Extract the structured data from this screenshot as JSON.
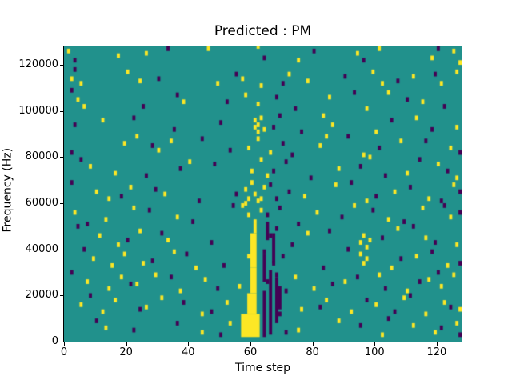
{
  "chart_data": {
    "type": "heatmap",
    "title": "Predicted : PM",
    "xlabel": "Time step",
    "ylabel": "Frequency (Hz)",
    "x_range": [
      0,
      128
    ],
    "y_range": [
      0,
      128000
    ],
    "grid": {
      "nx": 128,
      "ny": 128
    },
    "x_ticks": [
      0,
      20,
      40,
      60,
      80,
      100,
      120
    ],
    "x_tick_labels": [
      "0",
      "20",
      "40",
      "60",
      "80",
      "100",
      "120"
    ],
    "y_ticks": [
      0,
      20000,
      40000,
      60000,
      80000,
      100000,
      120000
    ],
    "y_tick_labels": [
      "0",
      "20000",
      "40000",
      "60000",
      "80000",
      "100000",
      "120000"
    ],
    "colors": {
      "background": "#ffffff",
      "mid": "#21918c",
      "high": "#fde725",
      "low": "#440154",
      "spine": "#000000"
    },
    "legend": null,
    "cells": {
      "yellow_rects": [
        [
          57,
          2,
          6,
          10
        ],
        [
          59,
          12,
          3,
          9
        ],
        [
          60,
          21,
          2,
          11
        ],
        [
          60,
          32,
          2,
          15
        ],
        [
          61,
          47,
          1,
          4
        ]
      ],
      "dark_rects": [
        [
          64,
          2,
          1,
          20
        ],
        [
          64,
          26,
          1,
          12
        ],
        [
          66,
          3,
          1,
          28
        ],
        [
          67,
          34,
          1,
          13
        ],
        [
          68,
          8,
          1,
          20
        ],
        [
          65,
          44,
          1,
          8
        ],
        [
          69,
          14,
          1,
          10
        ]
      ],
      "yellow": [
        [
          1,
          125
        ],
        [
          17,
          123
        ],
        [
          26,
          124
        ],
        [
          46,
          126
        ],
        [
          62,
          127
        ],
        [
          75,
          121
        ],
        [
          94,
          124
        ],
        [
          101,
          126
        ],
        [
          118,
          122
        ],
        [
          125,
          125
        ],
        [
          127,
          120
        ],
        [
          2,
          113
        ],
        [
          5,
          111
        ],
        [
          20,
          116
        ],
        [
          24,
          112
        ],
        [
          49,
          111
        ],
        [
          57,
          113
        ],
        [
          63,
          110
        ],
        [
          72,
          115
        ],
        [
          78,
          112
        ],
        [
          99,
          116
        ],
        [
          102,
          111
        ],
        [
          112,
          114
        ],
        [
          121,
          111
        ],
        [
          126,
          116
        ],
        [
          4,
          104
        ],
        [
          6,
          101
        ],
        [
          38,
          103
        ],
        [
          58,
          106
        ],
        [
          62,
          102
        ],
        [
          85,
          105
        ],
        [
          97,
          100
        ],
        [
          104,
          107
        ],
        [
          115,
          103
        ],
        [
          12,
          95
        ],
        [
          61,
          92
        ],
        [
          61,
          95
        ],
        [
          62,
          90
        ],
        [
          62,
          93
        ],
        [
          63,
          96
        ],
        [
          64,
          91
        ],
        [
          83,
          97
        ],
        [
          86,
          93
        ],
        [
          100,
          90
        ],
        [
          113,
          96
        ],
        [
          126,
          92
        ],
        [
          19,
          85
        ],
        [
          23,
          88
        ],
        [
          30,
          82
        ],
        [
          34,
          86
        ],
        [
          59,
          83
        ],
        [
          62,
          87
        ],
        [
          66,
          81
        ],
        [
          82,
          84
        ],
        [
          84,
          88
        ],
        [
          96,
          80
        ],
        [
          108,
          86
        ],
        [
          124,
          83
        ],
        [
          8,
          75
        ],
        [
          16,
          72
        ],
        [
          40,
          77
        ],
        [
          60,
          73
        ],
        [
          63,
          78
        ],
        [
          65,
          71
        ],
        [
          88,
          74
        ],
        [
          98,
          79
        ],
        [
          110,
          72
        ],
        [
          120,
          76
        ],
        [
          126,
          70
        ],
        [
          10,
          64
        ],
        [
          14,
          61
        ],
        [
          21,
          66
        ],
        [
          32,
          63
        ],
        [
          58,
          65
        ],
        [
          59,
          61
        ],
        [
          60,
          68
        ],
        [
          61,
          63
        ],
        [
          62,
          60
        ],
        [
          64,
          66
        ],
        [
          77,
          62
        ],
        [
          87,
          67
        ],
        [
          97,
          60
        ],
        [
          106,
          64
        ],
        [
          117,
          61
        ],
        [
          125,
          67
        ],
        [
          58,
          59
        ],
        [
          63,
          61
        ],
        [
          3,
          55
        ],
        [
          13,
          52
        ],
        [
          22,
          57
        ],
        [
          36,
          53
        ],
        [
          57,
          58
        ],
        [
          59,
          54
        ],
        [
          61,
          51
        ],
        [
          63,
          56
        ],
        [
          81,
          55
        ],
        [
          93,
          58
        ],
        [
          104,
          52
        ],
        [
          115,
          57
        ],
        [
          124,
          53
        ],
        [
          11,
          45
        ],
        [
          17,
          41
        ],
        [
          24,
          47
        ],
        [
          33,
          43
        ],
        [
          78,
          46
        ],
        [
          95,
          42
        ],
        [
          96,
          45
        ],
        [
          97,
          40
        ],
        [
          98,
          43
        ],
        [
          107,
          48
        ],
        [
          116,
          44
        ],
        [
          126,
          41
        ],
        [
          9,
          35
        ],
        [
          15,
          32
        ],
        [
          19,
          37
        ],
        [
          25,
          33
        ],
        [
          35,
          38
        ],
        [
          42,
          31
        ],
        [
          59,
          36
        ],
        [
          95,
          37
        ],
        [
          96,
          33
        ],
        [
          97,
          35
        ],
        [
          105,
          31
        ],
        [
          113,
          36
        ],
        [
          123,
          32
        ],
        [
          7,
          25
        ],
        [
          14,
          22
        ],
        [
          18,
          27
        ],
        [
          23,
          24
        ],
        [
          29,
          28
        ],
        [
          37,
          21
        ],
        [
          45,
          26
        ],
        [
          56,
          23
        ],
        [
          74,
          27
        ],
        [
          80,
          22
        ],
        [
          90,
          25
        ],
        [
          101,
          28
        ],
        [
          110,
          21
        ],
        [
          117,
          26
        ],
        [
          121,
          23
        ],
        [
          125,
          28
        ],
        [
          5,
          15
        ],
        [
          12,
          12
        ],
        [
          16,
          17
        ],
        [
          26,
          14
        ],
        [
          31,
          18
        ],
        [
          44,
          11
        ],
        [
          52,
          16
        ],
        [
          76,
          13
        ],
        [
          84,
          17
        ],
        [
          92,
          12
        ],
        [
          100,
          15
        ],
        [
          109,
          18
        ],
        [
          116,
          11
        ],
        [
          122,
          16
        ],
        [
          127,
          13
        ],
        [
          13,
          5
        ],
        [
          44,
          3
        ],
        [
          53,
          7
        ],
        [
          75,
          4
        ],
        [
          88,
          8
        ],
        [
          102,
          2
        ],
        [
          112,
          6
        ],
        [
          119,
          3
        ],
        [
          126,
          7
        ]
      ],
      "dark": [
        [
          3,
          121
        ],
        [
          33,
          126
        ],
        [
          64,
          122
        ],
        [
          80,
          125
        ],
        [
          96,
          121
        ],
        [
          120,
          126
        ],
        [
          3,
          117
        ],
        [
          30,
          113
        ],
        [
          55,
          115
        ],
        [
          70,
          111
        ],
        [
          90,
          114
        ],
        [
          107,
          112
        ],
        [
          119,
          115
        ],
        [
          2,
          108
        ],
        [
          25,
          101
        ],
        [
          36,
          106
        ],
        [
          52,
          103
        ],
        [
          68,
          105
        ],
        [
          74,
          100
        ],
        [
          93,
          107
        ],
        [
          110,
          104
        ],
        [
          122,
          101
        ],
        [
          3,
          93
        ],
        [
          22,
          96
        ],
        [
          35,
          91
        ],
        [
          50,
          94
        ],
        [
          67,
          92
        ],
        [
          69,
          97
        ],
        [
          76,
          90
        ],
        [
          105,
          95
        ],
        [
          118,
          91
        ],
        [
          2,
          81
        ],
        [
          28,
          84
        ],
        [
          44,
          87
        ],
        [
          53,
          82
        ],
        [
          70,
          85
        ],
        [
          73,
          80
        ],
        [
          91,
          88
        ],
        [
          101,
          83
        ],
        [
          116,
          86
        ],
        [
          127,
          81
        ],
        [
          5,
          78
        ],
        [
          26,
          71
        ],
        [
          37,
          74
        ],
        [
          48,
          76
        ],
        [
          67,
          73
        ],
        [
          71,
          77
        ],
        [
          79,
          70
        ],
        [
          95,
          75
        ],
        [
          103,
          71
        ],
        [
          114,
          78
        ],
        [
          123,
          73
        ],
        [
          2,
          68
        ],
        [
          18,
          62
        ],
        [
          29,
          65
        ],
        [
          43,
          60
        ],
        [
          55,
          63
        ],
        [
          66,
          67
        ],
        [
          68,
          61
        ],
        [
          72,
          64
        ],
        [
          92,
          68
        ],
        [
          100,
          62
        ],
        [
          111,
          66
        ],
        [
          121,
          60
        ],
        [
          127,
          64
        ],
        [
          7,
          50
        ],
        [
          27,
          56
        ],
        [
          41,
          51
        ],
        [
          54,
          58
        ],
        [
          65,
          54
        ],
        [
          69,
          57
        ],
        [
          75,
          50
        ],
        [
          89,
          53
        ],
        [
          99,
          56
        ],
        [
          109,
          51
        ],
        [
          122,
          58
        ],
        [
          127,
          55
        ],
        [
          4,
          49
        ],
        [
          20,
          43
        ],
        [
          31,
          46
        ],
        [
          47,
          42
        ],
        [
          66,
          45
        ],
        [
          68,
          48
        ],
        [
          73,
          41
        ],
        [
          85,
          47
        ],
        [
          102,
          44
        ],
        [
          112,
          49
        ],
        [
          119,
          42
        ],
        [
          6,
          39
        ],
        [
          28,
          34
        ],
        [
          39,
          37
        ],
        [
          51,
          32
        ],
        [
          64,
          38
        ],
        [
          67,
          33
        ],
        [
          70,
          36
        ],
        [
          83,
          31
        ],
        [
          91,
          39
        ],
        [
          108,
          35
        ],
        [
          118,
          38
        ],
        [
          127,
          33
        ],
        [
          2,
          29
        ],
        [
          21,
          24
        ],
        [
          34,
          27
        ],
        [
          49,
          22
        ],
        [
          65,
          25
        ],
        [
          68,
          28
        ],
        [
          71,
          21
        ],
        [
          86,
          24
        ],
        [
          94,
          27
        ],
        [
          103,
          22
        ],
        [
          114,
          25
        ],
        [
          120,
          29
        ],
        [
          8,
          19
        ],
        [
          24,
          13
        ],
        [
          38,
          16
        ],
        [
          47,
          12
        ],
        [
          69,
          11
        ],
        [
          82,
          14
        ],
        [
          97,
          17
        ],
        [
          106,
          12
        ],
        [
          111,
          19
        ],
        [
          124,
          14
        ],
        [
          10,
          8
        ],
        [
          22,
          4
        ],
        [
          36,
          7
        ],
        [
          50,
          2
        ],
        [
          71,
          3
        ],
        [
          95,
          6
        ],
        [
          104,
          9
        ],
        [
          121,
          5
        ],
        [
          127,
          2
        ]
      ]
    }
  }
}
